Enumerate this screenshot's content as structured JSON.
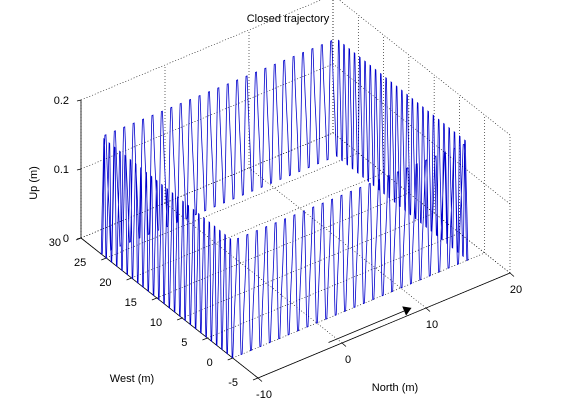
{
  "chart_data": {
    "type": "line3d",
    "title": "Closed trajectory",
    "xlabel": "North (m)",
    "ylabel": "West (m)",
    "zlabel": "Up (m)",
    "xlim": [
      -10,
      20
    ],
    "ylim": [
      -5,
      30
    ],
    "zlim": [
      0,
      0.2
    ],
    "xticks": [
      -10,
      0,
      10,
      20
    ],
    "yticks": [
      -5,
      0,
      5,
      10,
      15,
      20,
      25,
      30
    ],
    "zticks": [
      0,
      0.1,
      0.2
    ],
    "grid": true,
    "line_color": "#0000cc",
    "arrow_color": "#000000",
    "arrow_direction": "increasing North",
    "series": [
      {
        "path_corners": [
          [
            -10,
            0
          ],
          [
            18,
            0
          ],
          [
            18,
            26
          ],
          [
            -10,
            26
          ]
        ],
        "z_range": [
          0,
          0.17
        ],
        "oscillation_cycles_per_side": [
          25,
          25,
          25,
          25
        ],
        "traversal": "counter-clockwise"
      }
    ]
  }
}
